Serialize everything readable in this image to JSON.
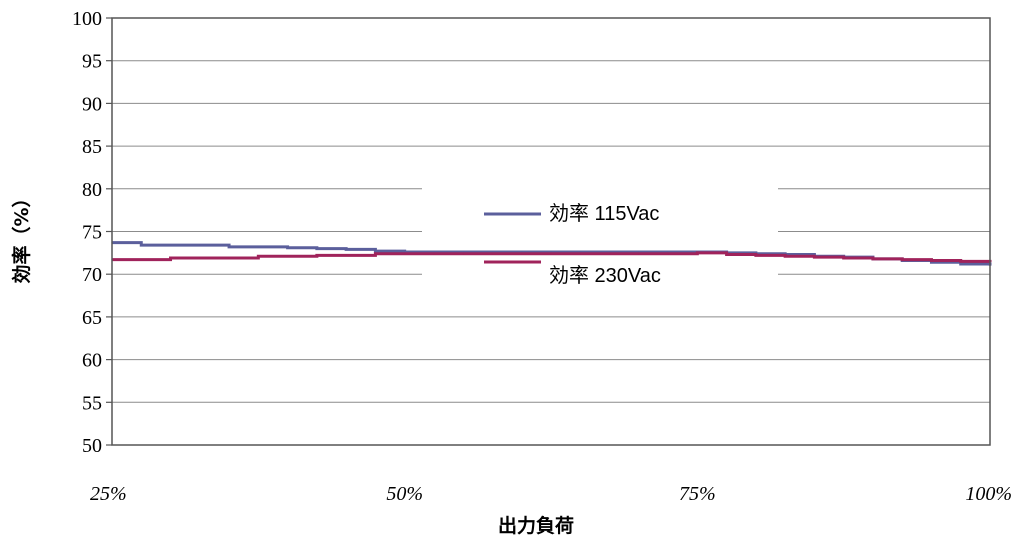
{
  "chart_data": {
    "type": "line",
    "xlabel": "出力負荷",
    "ylabel": "効率（%）",
    "x_ticks": [
      "25%",
      "50%",
      "75%",
      "100%"
    ],
    "y_ticks": [
      "50",
      "55",
      "60",
      "65",
      "70",
      "75",
      "80",
      "85",
      "90",
      "95",
      "100"
    ],
    "xlim": [
      25,
      100
    ],
    "ylim": [
      50,
      100
    ],
    "grid": true,
    "legend_position": "center",
    "x": [
      25,
      27.5,
      30,
      32.5,
      35,
      37.5,
      40,
      42.5,
      45,
      47.5,
      50,
      52.5,
      55,
      57.5,
      60,
      62.5,
      65,
      67.5,
      70,
      72.5,
      75,
      77.5,
      80,
      82.5,
      85,
      87.5,
      90,
      92.5,
      95,
      97.5,
      100
    ],
    "series": [
      {
        "name": "効率 115Vac",
        "color": "#5b5f9c",
        "values": [
          73.7,
          73.4,
          73.4,
          73.4,
          73.2,
          73.2,
          73.1,
          73.0,
          72.9,
          72.7,
          72.6,
          72.6,
          72.6,
          72.6,
          72.6,
          72.6,
          72.6,
          72.6,
          72.6,
          72.6,
          72.6,
          72.5,
          72.4,
          72.3,
          72.1,
          72.0,
          71.8,
          71.6,
          71.4,
          71.2,
          71.0
        ]
      },
      {
        "name": "効率 230Vac",
        "color": "#a0235b",
        "values": [
          71.7,
          71.7,
          71.9,
          71.9,
          71.9,
          72.1,
          72.1,
          72.2,
          72.2,
          72.4,
          72.4,
          72.4,
          72.4,
          72.4,
          72.4,
          72.4,
          72.4,
          72.4,
          72.4,
          72.4,
          72.5,
          72.3,
          72.2,
          72.1,
          72.0,
          71.9,
          71.8,
          71.7,
          71.6,
          71.5,
          71.4
        ]
      }
    ]
  }
}
